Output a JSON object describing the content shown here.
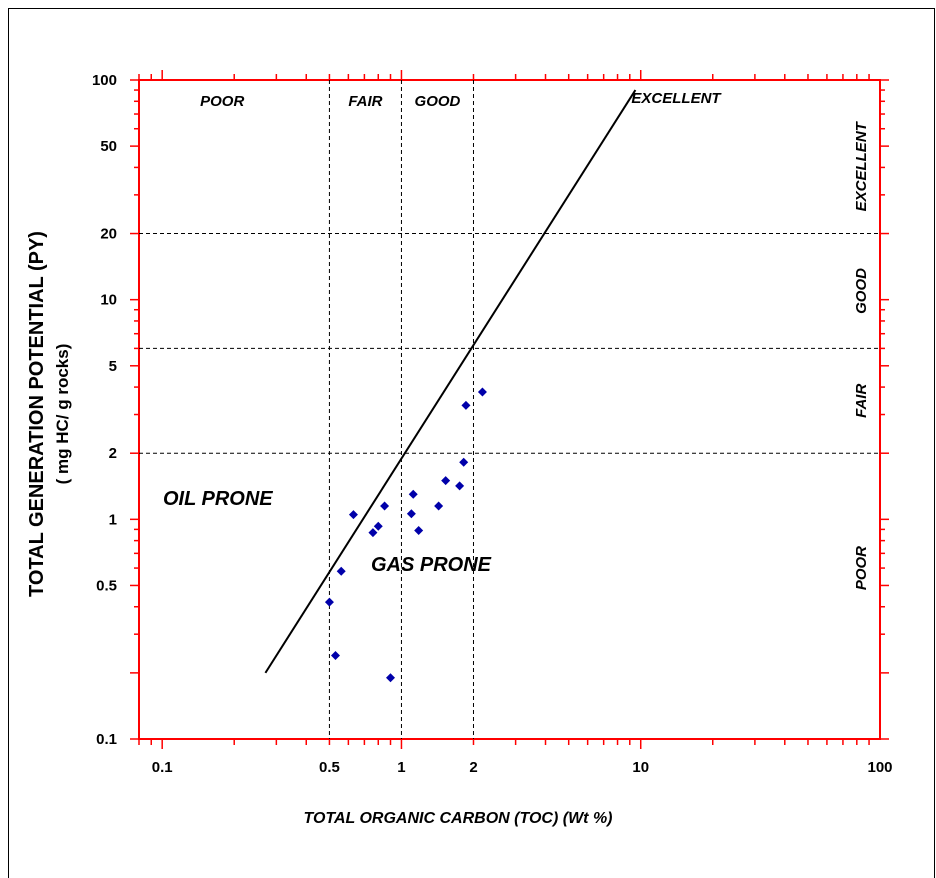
{
  "chart_data": {
    "type": "scatter",
    "xlabel": "TOTAL ORGANIC CARBON  (TOC) (Wt %)",
    "ylabel_line1": "TOTAL GENERATION POTENTIAL (PY)",
    "ylabel_line2": "( mg HC/ g rocks)",
    "x_scale": "log",
    "y_scale": "log",
    "xlim": [
      0.08,
      100
    ],
    "ylim": [
      0.1,
      100
    ],
    "x_ticks": [
      0.1,
      0.5,
      1,
      2,
      10,
      100
    ],
    "x_tick_labels": [
      "0.1",
      "0.5",
      "1",
      "2",
      "10",
      "100"
    ],
    "y_ticks": [
      0.1,
      0.5,
      1,
      2,
      5,
      10,
      20,
      50,
      100
    ],
    "y_tick_labels": [
      "0.1",
      "0.5",
      "1",
      "2",
      "5",
      "10",
      "20",
      "50",
      "100"
    ],
    "vertical_dividers": [
      0.5,
      1,
      2
    ],
    "horizontal_dividers": [
      2,
      6,
      20
    ],
    "toc_classes": [
      "POOR",
      "FAIR",
      "GOOD"
    ],
    "py_classes": [
      "EXCELLENT",
      "GOOD",
      "FAIR",
      "POOR"
    ],
    "diagonal_label": "EXCELLENT",
    "diagonal_line": {
      "x": [
        0.27,
        9.5
      ],
      "y": [
        0.2,
        90
      ]
    },
    "oil_prone_label": "OIL PRONE",
    "gas_prone_label": "GAS PRONE",
    "points": [
      {
        "x": 0.5,
        "y": 0.42
      },
      {
        "x": 0.53,
        "y": 0.24
      },
      {
        "x": 0.56,
        "y": 0.58
      },
      {
        "x": 0.63,
        "y": 1.05
      },
      {
        "x": 0.76,
        "y": 0.87
      },
      {
        "x": 0.8,
        "y": 0.93
      },
      {
        "x": 0.85,
        "y": 1.15
      },
      {
        "x": 0.9,
        "y": 0.19
      },
      {
        "x": 1.1,
        "y": 1.06
      },
      {
        "x": 1.12,
        "y": 1.3
      },
      {
        "x": 1.18,
        "y": 0.89
      },
      {
        "x": 1.43,
        "y": 1.15
      },
      {
        "x": 1.53,
        "y": 1.5
      },
      {
        "x": 1.75,
        "y": 1.42
      },
      {
        "x": 1.82,
        "y": 1.82
      },
      {
        "x": 1.86,
        "y": 3.3
      },
      {
        "x": 2.18,
        "y": 3.8
      }
    ],
    "colors": {
      "frame": "#ff0000",
      "points": "#0000aa",
      "lines": "#000000"
    },
    "grid": false
  }
}
